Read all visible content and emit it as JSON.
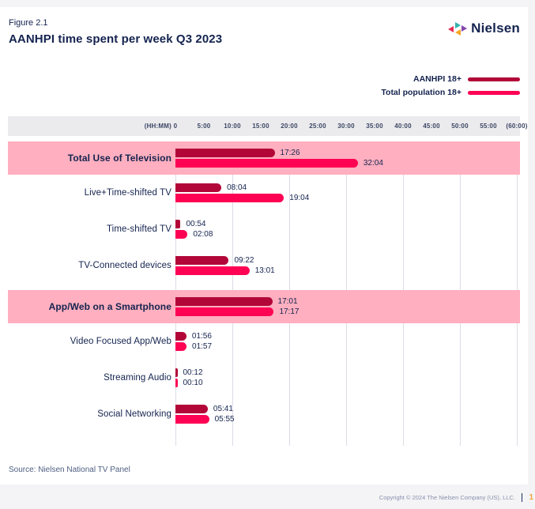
{
  "figure_label": "Figure 2.1",
  "title": "AANHPI time spent per week Q3 2023",
  "logo_text": "Nielsen",
  "legend": [
    {
      "label": "AANHPI 18+",
      "color": "#b20638"
    },
    {
      "label": "Total population 18+",
      "color": "#fe0254"
    }
  ],
  "chart_data": {
    "type": "bar",
    "orientation": "horizontal",
    "title": "AANHPI time spent per week Q3 2023",
    "x_axis_unit": "(HH:MM)",
    "x_ticks": [
      "0",
      "5:00",
      "10:00",
      "15:00",
      "20:00",
      "25:00",
      "30:00",
      "35:00",
      "40:00",
      "45:00",
      "50:00",
      "55:00",
      "(60:00)"
    ],
    "x_tick_hours": [
      0,
      5,
      10,
      15,
      20,
      25,
      30,
      35,
      40,
      45,
      50,
      55,
      60
    ],
    "xlim_hours": [
      0,
      60
    ],
    "gridlines_every_hours": 10,
    "legend_position": "top-right",
    "categories": [
      "Total Use of Television",
      "Live+Time-shifted TV",
      "Time-shifted TV",
      "TV-Connected devices",
      "App/Web on a Smartphone",
      "Video Focused App/Web",
      "Streaming Audio",
      "Social Networking"
    ],
    "highlighted_categories": [
      "Total Use of Television",
      "App/Web on a Smartphone"
    ],
    "series": [
      {
        "name": "AANHPI 18+",
        "color": "#b20638",
        "values_hhmm": [
          "17:26",
          "08:04",
          "00:54",
          "09:22",
          "17:01",
          "01:56",
          "00:12",
          "05:41"
        ]
      },
      {
        "name": "Total population 18+",
        "color": "#fe0254",
        "values_hhmm": [
          "32:04",
          "19:04",
          "02:08",
          "13:01",
          "17:17",
          "01:57",
          "00:10",
          "05:55"
        ]
      }
    ]
  },
  "source": "Source: Nielsen National TV Panel",
  "footer": {
    "copyright": "Copyright © 2024 The Nielsen Company (US), LLC.",
    "page": "1"
  },
  "colors": {
    "aanhpi_bar": "#b20638",
    "total_population_bar": "#fe0254",
    "row_highlight": "#ffafbf",
    "navy_text": "#14234f",
    "axis_header_strip": "#ebebee",
    "gridline": "#dcdce6",
    "source_text": "#4e5f82",
    "copyright_text": "#8891ad",
    "page_number": "#f2a33c",
    "logo_red": "#e52d52",
    "logo_teal": "#30b5af",
    "logo_orange": "#f5a623",
    "logo_purple": "#8347ad"
  }
}
